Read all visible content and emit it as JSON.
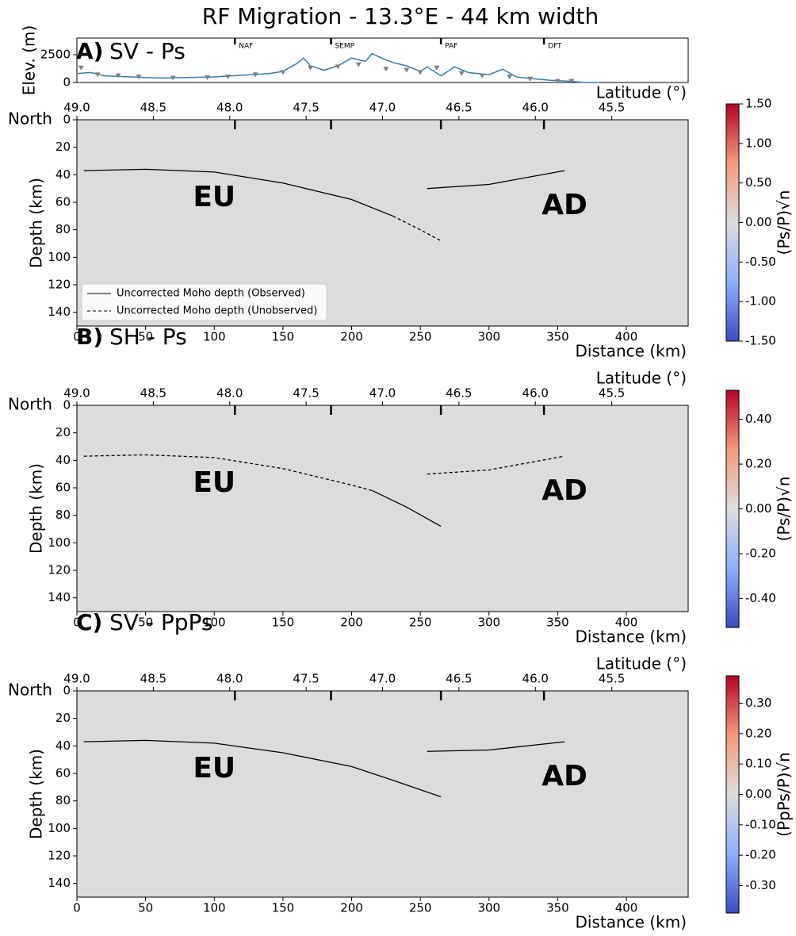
{
  "title": "RF Migration - 13.3°E - 44 km width",
  "chart_data": [
    {
      "type": "line",
      "ylabel": "Elev. (m)",
      "xlim": [
        0,
        445
      ],
      "ylim": [
        0,
        4000
      ],
      "yticks": [
        0,
        2500
      ],
      "markers": [
        {
          "x": 115,
          "label": "NAF"
        },
        {
          "x": 185,
          "label": "SEMP"
        },
        {
          "x": 265,
          "label": "PAF"
        },
        {
          "x": 340,
          "label": "DFT"
        }
      ],
      "series": [
        {
          "color": "#3a7ca5",
          "x": [
            0,
            10,
            20,
            40,
            60,
            80,
            100,
            120,
            140,
            150,
            160,
            165,
            170,
            180,
            190,
            200,
            210,
            215,
            220,
            230,
            240,
            250,
            255,
            265,
            275,
            285,
            300,
            310,
            320,
            335,
            345,
            360,
            370,
            380
          ],
          "values": [
            800,
            900,
            600,
            500,
            400,
            450,
            500,
            650,
            800,
            1000,
            1700,
            2200,
            1500,
            1100,
            1500,
            2200,
            1900,
            2600,
            2300,
            1800,
            1500,
            1000,
            1400,
            600,
            1400,
            900,
            700,
            1200,
            500,
            300,
            200,
            100,
            0,
            0
          ]
        },
        {
          "type": "scatter",
          "color": "#808080",
          "x": [
            3,
            15,
            30,
            45,
            70,
            95,
            110,
            130,
            150,
            170,
            190,
            205,
            225,
            240,
            250,
            262,
            280,
            295,
            315,
            330,
            350,
            360
          ],
          "values": [
            1300,
            700,
            600,
            500,
            400,
            450,
            500,
            700,
            900,
            1300,
            1400,
            1600,
            1200,
            1100,
            900,
            1300,
            800,
            600,
            500,
            300,
            100,
            100
          ]
        }
      ]
    },
    {
      "type": "heatmap",
      "panel_label": "A)",
      "title": "SV - Ps",
      "xlabel": "Distance (km)",
      "ylabel": "Depth (km)",
      "x2label": "Latitude (°)",
      "north": "North",
      "xlim": [
        0,
        445
      ],
      "xticks": [
        0,
        50,
        100,
        150,
        200,
        250,
        300,
        350,
        400
      ],
      "ylim": [
        150,
        0
      ],
      "yticks": [
        0,
        20,
        40,
        60,
        80,
        100,
        120,
        140
      ],
      "x2lim": [
        49.0,
        45.0
      ],
      "x2ticks": [
        {
          "value": 49.0,
          "label": "49.0"
        },
        {
          "value": 48.5,
          "label": "48.5"
        },
        {
          "value": 48.0,
          "label": "48.0"
        },
        {
          "value": 47.5,
          "label": "47.5"
        },
        {
          "value": 47.0,
          "label": "47.0"
        },
        {
          "value": 46.5,
          "label": "46.5"
        },
        {
          "value": 46.0,
          "label": "46.0"
        },
        {
          "value": 45.5,
          "label": "45.5"
        }
      ],
      "annotations": [
        {
          "text": "EU",
          "x": 100,
          "y": 57
        },
        {
          "text": "AD",
          "x": 355,
          "y": 63
        }
      ],
      "series": [
        {
          "name": "Uncorrected Moho depth (Observed)",
          "linestyle": "solid",
          "x": [
            5,
            50,
            100,
            150,
            200,
            230,
            null,
            255,
            300,
            355
          ],
          "values": [
            37,
            36,
            38,
            46,
            58,
            70,
            null,
            50,
            47,
            37
          ]
        },
        {
          "name": "Uncorrected Moho depth (Unobserved)",
          "linestyle": "dashed",
          "x": [
            230,
            250,
            265
          ],
          "values": [
            70,
            80,
            88
          ]
        }
      ],
      "colorbar": {
        "label": "(Ps/P)√n",
        "zlim": [
          -1.5,
          1.5
        ],
        "zticks": [
          {
            "value": 1.5,
            "label": "1.50"
          },
          {
            "value": 1.0,
            "label": "1.00"
          },
          {
            "value": 0.5,
            "label": "0.50"
          },
          {
            "value": 0.0,
            "label": "0.00"
          },
          {
            "value": -0.5,
            "label": "-0.50"
          },
          {
            "value": -1.0,
            "label": "-1.00"
          },
          {
            "value": -1.5,
            "label": "-1.50"
          }
        ]
      }
    },
    {
      "type": "heatmap",
      "panel_label": "B)",
      "title": "SH - Ps",
      "xlabel": "Distance (km)",
      "ylabel": "Depth (km)",
      "x2label": "Latitude (°)",
      "north": "North",
      "xlim": [
        0,
        445
      ],
      "xticks": [
        0,
        50,
        100,
        150,
        200,
        250,
        300,
        350,
        400
      ],
      "ylim": [
        150,
        0
      ],
      "yticks": [
        0,
        20,
        40,
        60,
        80,
        100,
        120,
        140
      ],
      "x2lim": [
        49.0,
        45.0
      ],
      "x2ticks": [
        {
          "value": 49.0,
          "label": "49.0"
        },
        {
          "value": 48.5,
          "label": "48.5"
        },
        {
          "value": 48.0,
          "label": "48.0"
        },
        {
          "value": 47.5,
          "label": "47.5"
        },
        {
          "value": 47.0,
          "label": "47.0"
        },
        {
          "value": 46.5,
          "label": "46.5"
        },
        {
          "value": 46.0,
          "label": "46.0"
        },
        {
          "value": 45.5,
          "label": "45.5"
        }
      ],
      "annotations": [
        {
          "text": "EU",
          "x": 100,
          "y": 57
        },
        {
          "text": "AD",
          "x": 355,
          "y": 63
        }
      ],
      "series": [
        {
          "linestyle": "dashed",
          "x": [
            5,
            50,
            100,
            150,
            200,
            215,
            null,
            255,
            300,
            355
          ],
          "values": [
            37,
            36,
            38,
            46,
            58,
            62,
            null,
            50,
            47,
            37
          ]
        },
        {
          "linestyle": "solid",
          "x": [
            215,
            240,
            265
          ],
          "values": [
            62,
            74,
            88
          ]
        }
      ],
      "colorbar": {
        "label": "(Ps/P)√n",
        "zlim": [
          -0.53,
          0.53
        ],
        "zticks": [
          {
            "value": 0.4,
            "label": "0.40"
          },
          {
            "value": 0.2,
            "label": "0.20"
          },
          {
            "value": 0.0,
            "label": "0.00"
          },
          {
            "value": -0.2,
            "label": "-0.20"
          },
          {
            "value": -0.4,
            "label": "-0.40"
          }
        ]
      }
    },
    {
      "type": "heatmap",
      "panel_label": "C)",
      "title": "SV - PpPs",
      "xlabel": "Distance (km)",
      "ylabel": "Depth (km)",
      "x2label": "Latitude (°)",
      "north": "North",
      "xlim": [
        0,
        445
      ],
      "xticks": [
        0,
        50,
        100,
        150,
        200,
        250,
        300,
        350,
        400
      ],
      "ylim": [
        150,
        0
      ],
      "yticks": [
        0,
        20,
        40,
        60,
        80,
        100,
        120,
        140
      ],
      "x2lim": [
        49.0,
        45.0
      ],
      "x2ticks": [
        {
          "value": 49.0,
          "label": "49.0"
        },
        {
          "value": 48.5,
          "label": "48.5"
        },
        {
          "value": 48.0,
          "label": "48.0"
        },
        {
          "value": 47.5,
          "label": "47.5"
        },
        {
          "value": 47.0,
          "label": "47.0"
        },
        {
          "value": 46.5,
          "label": "46.5"
        },
        {
          "value": 46.0,
          "label": "46.0"
        },
        {
          "value": 45.5,
          "label": "45.5"
        }
      ],
      "annotations": [
        {
          "text": "EU",
          "x": 100,
          "y": 57
        },
        {
          "text": "AD",
          "x": 355,
          "y": 63
        }
      ],
      "series": [
        {
          "linestyle": "solid",
          "x": [
            5,
            50,
            100,
            150,
            200,
            230,
            265,
            null,
            255,
            300,
            355
          ],
          "values": [
            37,
            36,
            38,
            45,
            55,
            65,
            77,
            null,
            44,
            43,
            37
          ]
        }
      ],
      "colorbar": {
        "label": "(PpPs/P)√n",
        "zlim": [
          -0.39,
          0.39
        ],
        "zticks": [
          {
            "value": 0.3,
            "label": "0.30"
          },
          {
            "value": 0.2,
            "label": "0.20"
          },
          {
            "value": 0.1,
            "label": "0.10"
          },
          {
            "value": 0.0,
            "label": "0.00"
          },
          {
            "value": -0.1,
            "label": "-0.10"
          },
          {
            "value": -0.2,
            "label": "-0.20"
          },
          {
            "value": -0.3,
            "label": "-0.30"
          }
        ]
      }
    }
  ]
}
